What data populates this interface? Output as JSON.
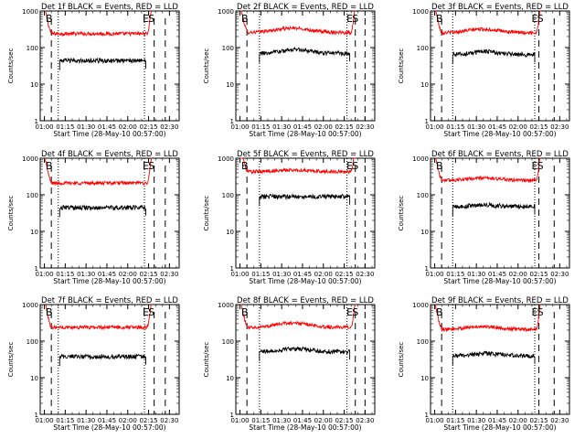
{
  "chart_data": {
    "type": "line",
    "layout": "3x3 grid of panels",
    "shared": {
      "ylabel": "Counts/sec",
      "xlabel": "Start Time (28-May-10 00:57:00)",
      "yscale": "log",
      "ylim": [
        1,
        1000
      ],
      "ytick_labels": [
        "1",
        "10",
        "100",
        "1000"
      ],
      "xlim": [
        "00:57",
        "02:37"
      ],
      "xtick_labels": [
        "01:00",
        "01:15",
        "01:30",
        "01:45",
        "02:00",
        "02:15",
        "02:30"
      ],
      "series_colors": {
        "events": "#000000",
        "lld": "#ff0000"
      },
      "marker_labels": {
        "b": "B",
        "e": "E",
        "s": "S"
      }
    },
    "panels": [
      {
        "title": "Det 1f BLACK = Events, RED = LLD",
        "events_level": 44,
        "lld_level": 240,
        "events_bump": 1.0,
        "lld_bump": 1.0,
        "markers": {
          "b": "01:00",
          "e": "02:13",
          "s": "02:17",
          "dot1": "01:10",
          "dot2": "02:12",
          "dash1": "01:05",
          "dash2": "02:19",
          "dash3": "02:27"
        },
        "events_start": "01:11",
        "events_end": "02:13"
      },
      {
        "title": "Det 2f BLACK = Events, RED = LLD",
        "events_level": 70,
        "lld_level": 260,
        "events_bump": 1.25,
        "lld_bump": 1.3,
        "markers": {
          "b": "01:00",
          "e": "02:19",
          "s": "02:23",
          "dot1": "01:14",
          "dot2": "02:17",
          "dash1": "01:05",
          "dash2": "02:23",
          "dash3": "02:30"
        },
        "events_start": "01:14",
        "events_end": "02:19"
      },
      {
        "title": "Det 3f BLACK = Events, RED = LLD",
        "events_level": 65,
        "lld_level": 255,
        "events_bump": 1.2,
        "lld_bump": 1.25,
        "markers": {
          "b": "01:00",
          "e": "02:12",
          "s": "02:16",
          "dot1": "01:13",
          "dot2": "02:12",
          "dash1": "01:05",
          "dash2": "02:15",
          "dash3": "02:26"
        },
        "events_start": "01:13",
        "events_end": "02:12"
      },
      {
        "title": "Det 4f BLACK = Events, RED = LLD",
        "events_level": 45,
        "lld_level": 210,
        "events_bump": 1.0,
        "lld_bump": 1.0,
        "markers": {
          "b": "01:00",
          "e": "02:13",
          "s": "02:17",
          "dot1": "01:10",
          "dot2": "02:12",
          "dash1": "01:05",
          "dash2": "02:19",
          "dash3": "02:27"
        },
        "events_start": "01:11",
        "events_end": "02:13"
      },
      {
        "title": "Det 5f BLACK = Events, RED = LLD",
        "events_level": 90,
        "lld_level": 430,
        "events_bump": 1.0,
        "lld_bump": 1.1,
        "markers": {
          "b": "01:00",
          "e": "02:19",
          "s": "02:23",
          "dot1": "01:14",
          "dot2": "02:17",
          "dash1": "01:05",
          "dash2": "02:23",
          "dash3": "02:30"
        },
        "events_start": "01:14",
        "events_end": "02:19"
      },
      {
        "title": "Det 6f BLACK = Events, RED = LLD",
        "events_level": 48,
        "lld_level": 250,
        "events_bump": 1.1,
        "lld_bump": 1.15,
        "markers": {
          "b": "01:00",
          "e": "02:12",
          "s": "02:16",
          "dot1": "01:13",
          "dot2": "02:12",
          "dash1": "01:05",
          "dash2": "02:15",
          "dash3": "02:26"
        },
        "events_start": "01:13",
        "events_end": "02:12"
      },
      {
        "title": "Det 7f BLACK = Events, RED = LLD",
        "events_level": 38,
        "lld_level": 240,
        "events_bump": 1.0,
        "lld_bump": 1.0,
        "markers": {
          "b": "01:00",
          "e": "02:13",
          "s": "02:17",
          "dot1": "01:10",
          "dot2": "02:12",
          "dash1": "01:05",
          "dash2": "02:19",
          "dash3": "02:27"
        },
        "events_start": "01:11",
        "events_end": "02:13"
      },
      {
        "title": "Det 8f BLACK = Events, RED = LLD",
        "events_level": 52,
        "lld_level": 240,
        "events_bump": 1.2,
        "lld_bump": 1.3,
        "markers": {
          "b": "01:00",
          "e": "02:19",
          "s": "02:23",
          "dot1": "01:14",
          "dot2": "02:17",
          "dash1": "01:05",
          "dash2": "02:23",
          "dash3": "02:30"
        },
        "events_start": "01:14",
        "events_end": "02:19"
      },
      {
        "title": "Det 9f BLACK = Events, RED = LLD",
        "events_level": 40,
        "lld_level": 210,
        "events_bump": 1.15,
        "lld_bump": 1.2,
        "markers": {
          "b": "01:00",
          "e": "02:12",
          "s": "02:16",
          "dot1": "01:13",
          "dot2": "02:12",
          "dash1": "01:05",
          "dash2": "02:15",
          "dash3": "02:26"
        },
        "events_start": "01:13",
        "events_end": "02:12"
      }
    ]
  }
}
